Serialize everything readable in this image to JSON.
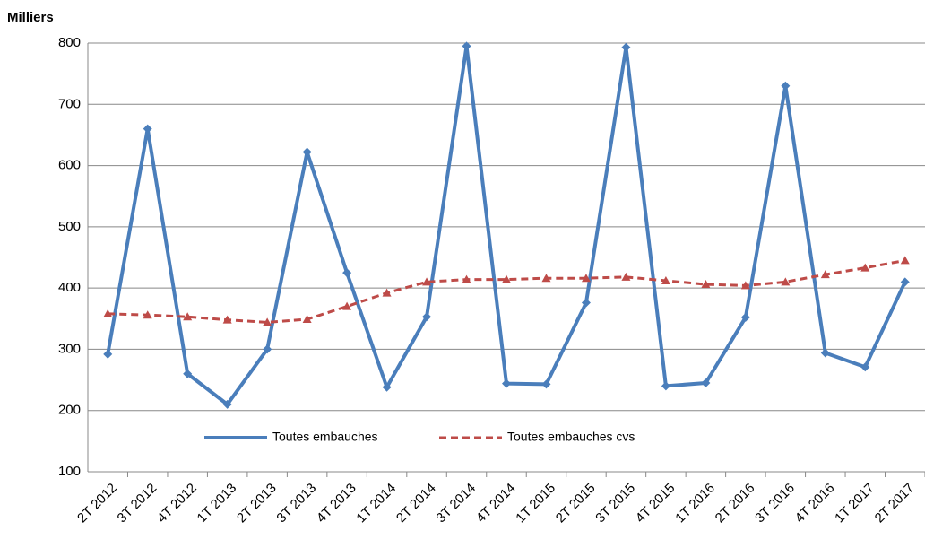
{
  "chart_data": {
    "type": "line",
    "y_label": "Milliers",
    "categories": [
      "2T 2012",
      "3T 2012",
      "4T 2012",
      "1T 2013",
      "2T 2013",
      "3T 2013",
      "4T 2013",
      "1T 2014",
      "2T 2014",
      "3T 2014",
      "4T 2014",
      "1T 2015",
      "2T 2015",
      "3T 2015",
      "4T 2015",
      "1T 2016",
      "2T 2016",
      "3T 2016",
      "4T 2016",
      "1T 2017",
      "2T 2017"
    ],
    "series": [
      {
        "name": "Toutes embauches",
        "color": "#4a7ebb",
        "dash": false,
        "marker": "diamond",
        "values": [
          292,
          660,
          260,
          210,
          300,
          622,
          425,
          238,
          353,
          795,
          244,
          243,
          376,
          793,
          240,
          245,
          352,
          730,
          294,
          271,
          410
        ]
      },
      {
        "name": "Toutes embauches cvs",
        "color": "#be4b48",
        "dash": true,
        "marker": "triangle",
        "values": [
          358,
          356,
          353,
          348,
          344,
          349,
          370,
          392,
          410,
          414,
          414,
          416,
          416,
          418,
          412,
          406,
          404,
          410,
          422,
          433,
          445
        ]
      }
    ],
    "ylim": [
      100,
      800
    ],
    "yticks": [
      100,
      200,
      300,
      400,
      500,
      600,
      700,
      800
    ],
    "grid": true
  }
}
